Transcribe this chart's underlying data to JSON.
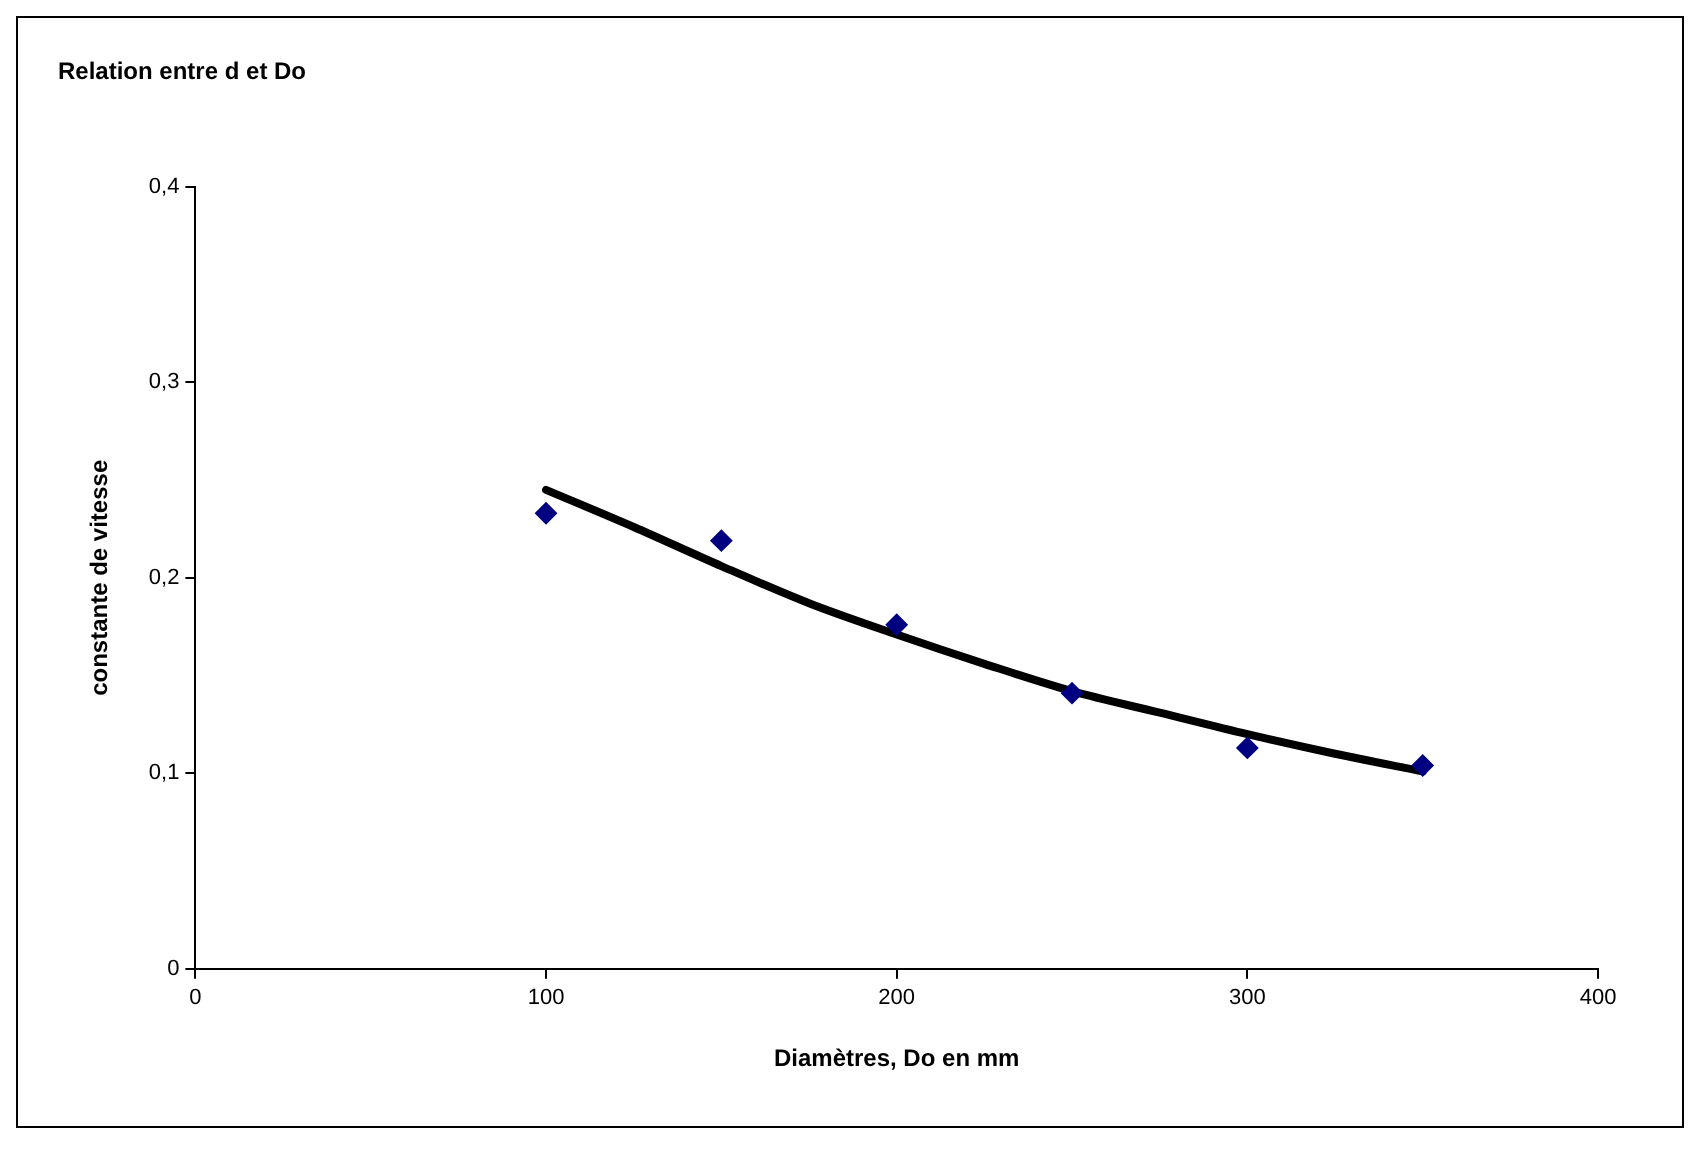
{
  "chart_data": {
    "type": "scatter",
    "title": "Relation entre d et Do",
    "xlabel": "Diamètres, Do en mm",
    "ylabel": "constante de vitesse",
    "xlim": [
      0,
      400
    ],
    "xticks": [
      0,
      100,
      200,
      300,
      400
    ],
    "ylim": [
      0,
      0.4
    ],
    "yticks": [
      0,
      {
        "value": 0.1,
        "label": "0,1"
      },
      {
        "value": 0.2,
        "label": "0,2"
      },
      {
        "value": 0.3,
        "label": "0,3"
      },
      {
        "value": 0.4,
        "label": "0,4"
      }
    ],
    "grid": false,
    "legend": false,
    "marker": "diamond",
    "series": [
      {
        "type": "scatter",
        "color": "#000080",
        "x": [
          100,
          150,
          200,
          250,
          300,
          350
        ],
        "values": [
          0.233,
          0.219,
          0.176,
          0.141,
          0.113,
          0.104
        ]
      },
      {
        "type": "line",
        "color": "#000000",
        "marker": "none",
        "line_style": "solid",
        "x": [
          100,
          125,
          150,
          175,
          200,
          225,
          250,
          275,
          300,
          325,
          350
        ],
        "values": [
          0.245,
          0.226,
          0.206,
          0.187,
          0.171,
          0.156,
          0.142,
          0.131,
          0.12,
          0.11,
          0.101
        ]
      }
    ]
  }
}
